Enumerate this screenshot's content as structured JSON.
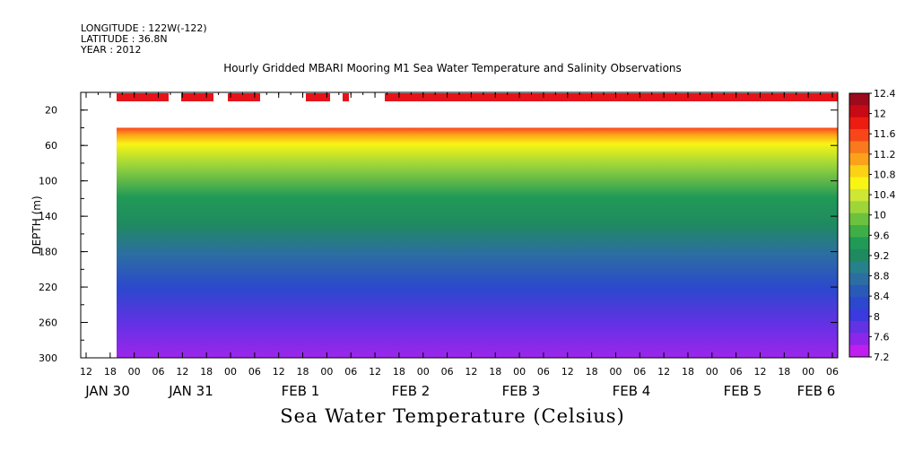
{
  "header": {
    "longitude": "LONGITUDE : 122W(-122)",
    "latitude": "LATITUDE : 36.8N",
    "year": "YEAR : 2012"
  },
  "chart_data": {
    "type": "heatmap",
    "title": "Hourly Gridded MBARI Mooring M1 Sea Water Temperature and Salinity Observations",
    "colorbar_label": "Sea Water Temperature (Celsius)",
    "ylabel": "DEPTH (m)",
    "ylim": [
      300,
      0
    ],
    "y_ticks": [
      "20",
      "60",
      "100",
      "140",
      "180",
      "220",
      "260",
      "300"
    ],
    "x_hour_ticks": [
      "12",
      "18",
      "00",
      "06",
      "12",
      "18",
      "00",
      "06",
      "12",
      "18",
      "00",
      "06",
      "12",
      "18",
      "00",
      "06",
      "12",
      "18",
      "00",
      "06",
      "12",
      "18",
      "00",
      "06",
      "12",
      "18",
      "00",
      "06",
      "12",
      "18",
      "00",
      "06"
    ],
    "x_date_labels": [
      "JAN 30",
      "JAN 31",
      "FEB  1",
      "FEB  2",
      "FEB  3",
      "FEB  4",
      "FEB  5",
      "FEB  6"
    ],
    "colorbar_levels": [
      "12.4",
      "12",
      "11.6",
      "11.2",
      "10.8",
      "10.4",
      "10",
      "9.6",
      "9.2",
      "8.8",
      "8.4",
      "8",
      "7.6",
      "7.2"
    ],
    "colorbar_colors": [
      "#9c0a1c",
      "#c80a16",
      "#ec1c10",
      "#f8461a",
      "#f87a1c",
      "#fca21a",
      "#fcd214",
      "#f8f414",
      "#cee634",
      "#9ed63a",
      "#6cc23e",
      "#3eae46",
      "#219a56",
      "#1f8a60",
      "#27818a",
      "#2c6ea2",
      "#2a5ab8",
      "#2c48ce",
      "#3a3ade",
      "#6232e4",
      "#8c26ea",
      "#c01ef0"
    ],
    "profile": [
      {
        "depth": 45,
        "value": 11.5
      },
      {
        "depth": 55,
        "value": 11.0
      },
      {
        "depth": 65,
        "value": 10.6
      },
      {
        "depth": 80,
        "value": 10.2
      },
      {
        "depth": 100,
        "value": 9.7
      },
      {
        "depth": 120,
        "value": 9.1
      },
      {
        "depth": 145,
        "value": 8.8
      },
      {
        "depth": 170,
        "value": 8.5
      },
      {
        "depth": 200,
        "value": 8.2
      },
      {
        "depth": 230,
        "value": 7.9
      },
      {
        "depth": 260,
        "value": 7.6
      },
      {
        "depth": 290,
        "value": 7.3
      }
    ]
  }
}
